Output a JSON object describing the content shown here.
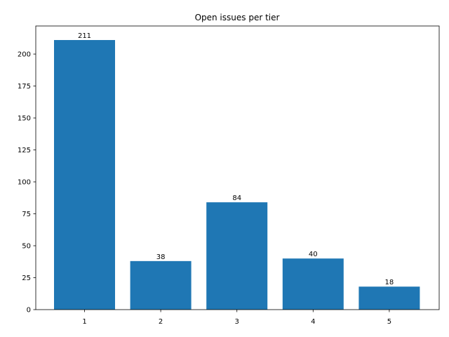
{
  "chart_data": {
    "type": "bar",
    "title": "Open issues per tier",
    "xlabel": "",
    "ylabel": "",
    "categories": [
      "1",
      "2",
      "3",
      "4",
      "5"
    ],
    "values": [
      211,
      38,
      84,
      40,
      18
    ],
    "data_labels": [
      "211",
      "38",
      "84",
      "40",
      "18"
    ],
    "ylim": [
      0,
      222
    ],
    "yticks": [
      0,
      25,
      50,
      75,
      100,
      125,
      150,
      175,
      200
    ],
    "ytick_labels": [
      "0",
      "25",
      "50",
      "75",
      "100",
      "125",
      "150",
      "175",
      "200"
    ],
    "grid": false,
    "legend": "none",
    "colors": {
      "bar": "#1f77b4",
      "axis": "#000000",
      "text": "#000000",
      "background": "#ffffff"
    }
  }
}
